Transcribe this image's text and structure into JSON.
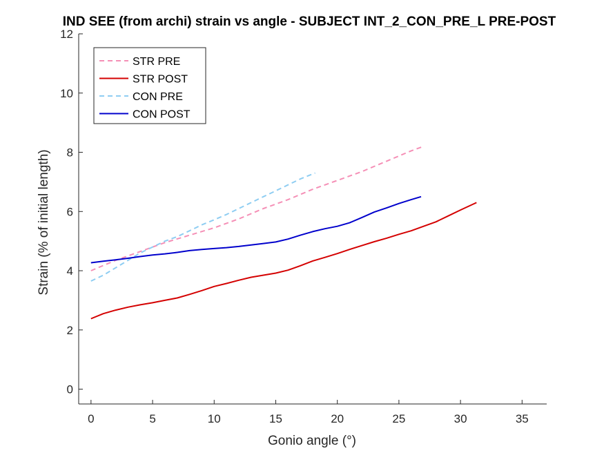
{
  "chart_data": {
    "type": "line",
    "title": "IND SEE (from archi) strain vs angle - SUBJECT INT_2_CON_PRE_L PRE-POST",
    "xlabel": "Gonio angle (°)",
    "ylabel": "Strain (% of initial length)",
    "xlim": [
      -1,
      37
    ],
    "ylim": [
      -0.5,
      12
    ],
    "xticks": [
      0,
      5,
      10,
      15,
      20,
      25,
      30,
      35
    ],
    "yticks": [
      0,
      2,
      4,
      6,
      8,
      10,
      12
    ],
    "grid": false,
    "legend_position": "top-left",
    "series": [
      {
        "name": "STR PRE",
        "color": "#f58fb6",
        "dash": "dashed",
        "x": [
          0,
          2,
          4,
          6,
          8,
          10,
          12,
          14,
          16,
          18,
          20,
          22,
          24,
          26,
          27
        ],
        "y": [
          4.0,
          4.35,
          4.65,
          4.95,
          5.2,
          5.45,
          5.75,
          6.1,
          6.4,
          6.75,
          7.05,
          7.35,
          7.7,
          8.05,
          8.2
        ]
      },
      {
        "name": "STR POST",
        "color": "#d40000",
        "dash": "solid",
        "x": [
          0,
          1,
          2,
          3,
          4,
          5,
          6,
          7,
          8,
          9,
          10,
          11,
          12,
          13,
          14,
          15,
          16,
          17,
          18,
          19,
          20,
          21,
          22,
          23,
          24,
          25,
          26,
          27,
          28,
          29,
          30,
          31.3
        ],
        "y": [
          2.38,
          2.55,
          2.67,
          2.77,
          2.85,
          2.92,
          3.0,
          3.08,
          3.2,
          3.33,
          3.47,
          3.57,
          3.68,
          3.78,
          3.85,
          3.92,
          4.02,
          4.17,
          4.33,
          4.45,
          4.58,
          4.72,
          4.85,
          4.98,
          5.1,
          5.23,
          5.35,
          5.5,
          5.65,
          5.85,
          6.05,
          6.3
        ]
      },
      {
        "name": "CON PRE",
        "color": "#8ecdf2",
        "dash": "dashed",
        "x": [
          0,
          1,
          2,
          3,
          4,
          5,
          6,
          7,
          8,
          9,
          10,
          11,
          12,
          13,
          14,
          15,
          16,
          17,
          18.2
        ],
        "y": [
          3.65,
          3.85,
          4.1,
          4.35,
          4.6,
          4.8,
          5.0,
          5.15,
          5.35,
          5.55,
          5.72,
          5.9,
          6.1,
          6.3,
          6.5,
          6.7,
          6.9,
          7.1,
          7.3
        ]
      },
      {
        "name": "CON POST",
        "color": "#0000cc",
        "dash": "solid",
        "x": [
          0,
          1,
          2,
          3,
          4,
          5,
          6,
          7,
          8,
          9,
          10,
          11,
          12,
          13,
          14,
          15,
          16,
          17,
          18,
          19,
          20,
          21,
          22,
          23,
          24,
          25,
          26,
          26.8
        ],
        "y": [
          4.27,
          4.32,
          4.37,
          4.42,
          4.48,
          4.53,
          4.57,
          4.62,
          4.68,
          4.72,
          4.75,
          4.78,
          4.82,
          4.87,
          4.92,
          4.97,
          5.07,
          5.2,
          5.32,
          5.42,
          5.5,
          5.62,
          5.8,
          5.98,
          6.12,
          6.27,
          6.4,
          6.5
        ]
      }
    ]
  }
}
